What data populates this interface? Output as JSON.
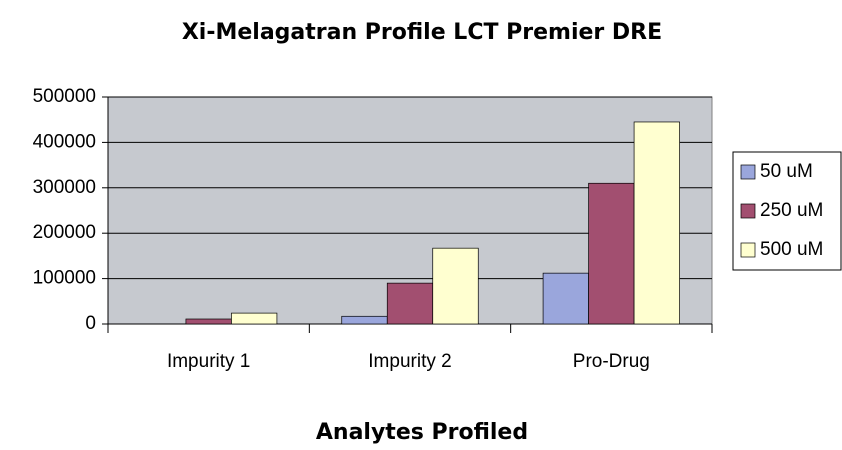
{
  "chart_data": {
    "type": "bar",
    "title": "Xi-Melagatran Profile LCT Premier DRE",
    "x_label": "Analytes Profiled",
    "categories": [
      "Impurity 1",
      "Impurity 2",
      "Pro-Drug"
    ],
    "series": [
      {
        "name": "50 uM",
        "color": "#9aa6dc",
        "values": [
          0,
          17000,
          112000
        ]
      },
      {
        "name": "250 uM",
        "color": "#a24f70",
        "values": [
          11000,
          90000,
          310000
        ]
      },
      {
        "name": "500 uM",
        "color": "#ffffd0",
        "values": [
          24000,
          167000,
          445000
        ]
      }
    ],
    "ylim": [
      0,
      500000
    ],
    "yticks": [
      0,
      100000,
      200000,
      300000,
      400000,
      500000
    ],
    "grid": true,
    "legend": "right"
  }
}
